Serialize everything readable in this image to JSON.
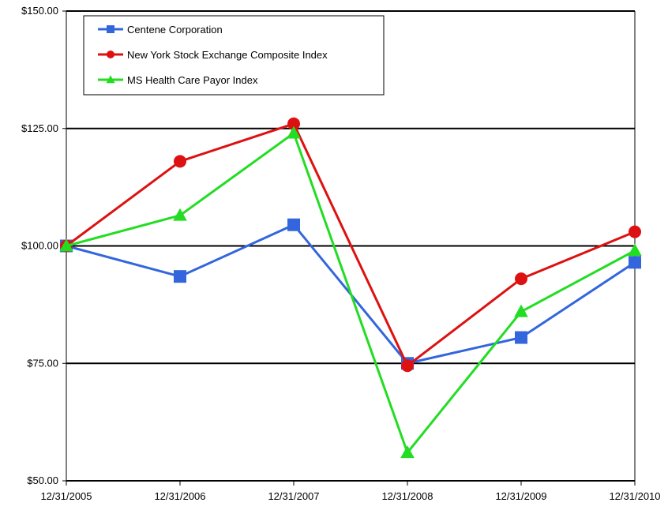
{
  "chart_data": {
    "type": "line",
    "title": "",
    "xlabel": "",
    "ylabel": "",
    "categories": [
      "12/31/2005",
      "12/31/2006",
      "12/31/2007",
      "12/31/2008",
      "12/31/2009",
      "12/31/2010"
    ],
    "ylim": [
      50,
      150
    ],
    "y_ticks": [
      50,
      75,
      100,
      125,
      150
    ],
    "y_tick_labels": [
      "$50.00",
      "$75.00",
      "$100.00",
      "$125.00",
      "$150.00"
    ],
    "gridlines": "horizontal major, black",
    "legend_position": "top-left",
    "series": [
      {
        "name": "Centene Corporation",
        "color": "#3366dd",
        "marker": "square",
        "values": [
          100,
          93.5,
          104.5,
          75,
          80.5,
          96.5
        ]
      },
      {
        "name": "New York Stock Exchange Composite Index",
        "color": "#dd1111",
        "marker": "circle",
        "values": [
          100,
          118,
          126,
          74.5,
          93,
          103
        ]
      },
      {
        "name": "MS Health Care Payor Index",
        "color": "#22dd22",
        "marker": "triangle",
        "values": [
          100,
          106.5,
          124,
          56,
          86,
          99
        ]
      }
    ]
  }
}
